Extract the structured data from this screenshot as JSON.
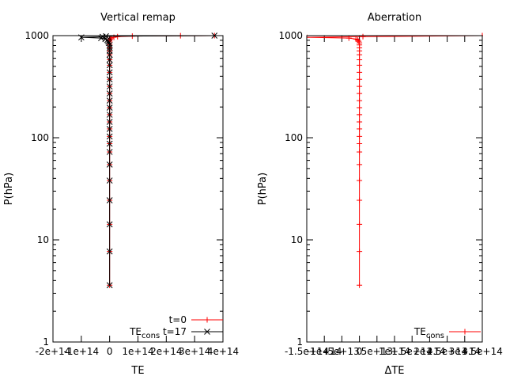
{
  "chart_data": [
    {
      "type": "line",
      "title": "Vertical remap",
      "xlabel": "TE",
      "ylabel": "P(hPa)",
      "xlim": [
        -200000000000000.0,
        400000000000000.0
      ],
      "ylim": [
        1,
        1000
      ],
      "y_scale": "log",
      "x_ticks": [
        -200000000000000.0,
        -100000000000000.0,
        0,
        100000000000000.0,
        200000000000000.0,
        300000000000000.0,
        400000000000000.0
      ],
      "x_tick_labels": [
        "-2e+14",
        "-1e+14",
        "0",
        "1e+14",
        "2e+14",
        "3e+14",
        "4e+14"
      ],
      "y_ticks": [
        1,
        10,
        100,
        1000
      ],
      "y_tick_labels": [
        "1",
        "10",
        "100",
        "1000"
      ],
      "legend_position": "bottom-right",
      "series": [
        {
          "name": "t=0",
          "color": "#ff0000",
          "marker": "plus",
          "points": [
            [
              0,
              3.6
            ],
            [
              0,
              7.7
            ],
            [
              0,
              14.2
            ],
            [
              0,
              24.4
            ],
            [
              0,
              38.1
            ],
            [
              0,
              54.6
            ],
            [
              0,
              72.6
            ],
            [
              0,
              87.5
            ],
            [
              0,
              103.0
            ],
            [
              0,
              122.0
            ],
            [
              0,
              143.0
            ],
            [
              0,
              168.0
            ],
            [
              0,
              197.0
            ],
            [
              0,
              231.0
            ],
            [
              0,
              271.0
            ],
            [
              0,
              318.0
            ],
            [
              0,
              373.0
            ],
            [
              0,
              437.0
            ],
            [
              0,
              513.0
            ],
            [
              0,
              580.0
            ],
            [
              0,
              650.0
            ],
            [
              0,
              710.0
            ],
            [
              0,
              760.0
            ],
            [
              0,
              810.0
            ],
            [
              0,
              850.0
            ],
            [
              0,
              880.0
            ],
            [
              0,
              905.0
            ],
            [
              2000000000000.0,
              925.0
            ],
            [
              5000000000000.0,
              945.0
            ],
            [
              15000000000000.0,
              962.0
            ],
            [
              28000000000000.0,
              977.0
            ],
            [
              80000000000000.0,
              989.0
            ],
            [
              250000000000000.0,
              997.0
            ],
            [
              370000000000000.0,
              1000.0
            ]
          ]
        },
        {
          "name": "TE_cons t=17",
          "color": "#000000",
          "marker": "cross",
          "points": [
            [
              0,
              3.6
            ],
            [
              0,
              7.7
            ],
            [
              0,
              14.2
            ],
            [
              0,
              24.4
            ],
            [
              0,
              38.1
            ],
            [
              0,
              54.6
            ],
            [
              0,
              72.6
            ],
            [
              0,
              87.5
            ],
            [
              0,
              103.0
            ],
            [
              0,
              122.0
            ],
            [
              0,
              143.0
            ],
            [
              0,
              168.0
            ],
            [
              0,
              197.0
            ],
            [
              0,
              231.0
            ],
            [
              0,
              271.0
            ],
            [
              0,
              318.0
            ],
            [
              0,
              373.0
            ],
            [
              0,
              437.0
            ],
            [
              0,
              513.0
            ],
            [
              0,
              580.0
            ],
            [
              0,
              650.0
            ],
            [
              0,
              710.0
            ],
            [
              0,
              760.0
            ],
            [
              0,
              810.0
            ],
            [
              -3000000000000.0,
              850.0
            ],
            [
              -5000000000000.0,
              880.0
            ],
            [
              -8000000000000.0,
              905.0
            ],
            [
              -15000000000000.0,
              925.0
            ],
            [
              -30000000000000.0,
              945.0
            ],
            [
              -100000000000000.0,
              962.0
            ],
            [
              -25000000000000.0,
              975.0
            ],
            [
              -13000000000000.0,
              987.0
            ],
            [
              370000000000000.0,
              1000.0
            ]
          ]
        }
      ],
      "legend_labels": [
        {
          "text": "t=0",
          "sub": ""
        },
        {
          "text": "TE",
          "sub": "cons",
          "suffix": " t=17"
        }
      ]
    },
    {
      "type": "line",
      "title": "Aberration",
      "xlabel": "ΔTE",
      "ylabel": "P(hPa)",
      "xlim": [
        -150000000000000.0,
        350000000000000.0
      ],
      "ylim": [
        1,
        1000
      ],
      "y_scale": "log",
      "x_ticks": [
        -150000000000000.0,
        -100000000000000.0,
        -50000000000000.0,
        0,
        50000000000000.0,
        100000000000000.0,
        150000000000000.0,
        200000000000000.0,
        250000000000000.0,
        300000000000000.0,
        350000000000000.0
      ],
      "x_tick_labels": [
        "-1.5e+14",
        "-1e+14",
        "-5e+13",
        "0",
        "5e+13",
        "1e+14",
        "1.5e+14",
        "2e+14",
        "2.5e+14",
        "3e+14",
        "3.5e+14"
      ],
      "y_ticks": [
        1,
        10,
        100,
        1000
      ],
      "y_tick_labels": [
        "1",
        "10",
        "100",
        "1000"
      ],
      "legend_position": "bottom-right",
      "series": [
        {
          "name": "TE_cons",
          "color": "#ff0000",
          "marker": "plus",
          "points": [
            [
              0,
              3.6
            ],
            [
              0,
              7.7
            ],
            [
              0,
              14.2
            ],
            [
              0,
              24.4
            ],
            [
              0,
              38.1
            ],
            [
              0,
              54.6
            ],
            [
              0,
              72.6
            ],
            [
              0,
              87.5
            ],
            [
              0,
              103.0
            ],
            [
              0,
              122.0
            ],
            [
              0,
              143.0
            ],
            [
              0,
              168.0
            ],
            [
              0,
              197.0
            ],
            [
              0,
              231.0
            ],
            [
              0,
              271.0
            ],
            [
              0,
              318.0
            ],
            [
              0,
              373.0
            ],
            [
              0,
              437.0
            ],
            [
              0,
              513.0
            ],
            [
              0,
              580.0
            ],
            [
              0,
              650.0
            ],
            [
              0,
              710.0
            ],
            [
              0,
              760.0
            ],
            [
              0,
              810.0
            ],
            [
              0,
              850.0
            ],
            [
              -2000000000000.0,
              880.0
            ],
            [
              -5000000000000.0,
              905.0
            ],
            [
              -10000000000000.0,
              925.0
            ],
            [
              -30000000000000.0,
              945.0
            ],
            [
              -150000000000000.0,
              962.0
            ],
            [
              10000000000000.0,
              978.0
            ],
            [
              350000000000000.0,
              1000.0
            ]
          ]
        }
      ],
      "legend_labels": [
        {
          "text": "TE",
          "sub": "cons",
          "suffix": ""
        }
      ]
    }
  ]
}
